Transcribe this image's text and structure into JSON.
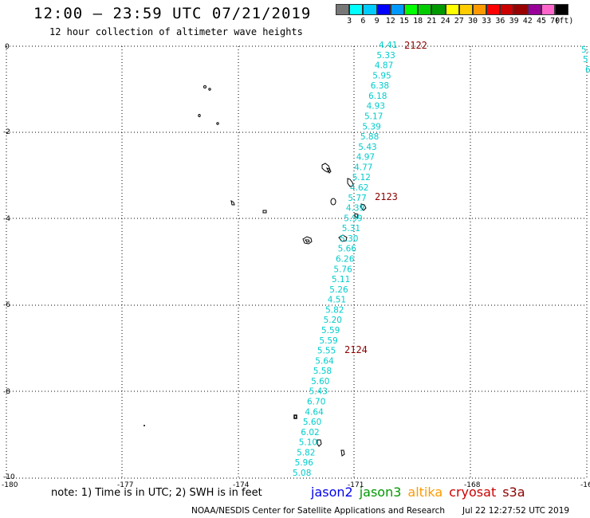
{
  "header": {
    "title": "12:00 — 23:59 UTC 07/21/2019",
    "subtitle": "12 hour collection of altimeter wave heights"
  },
  "legend": {
    "colors": [
      "#777777",
      "#00ffff",
      "#00ccff",
      "#0000ff",
      "#0099ff",
      "#00ff00",
      "#00cc00",
      "#009900",
      "#ffff00",
      "#ffcc00",
      "#ff9900",
      "#ff0000",
      "#cc0000",
      "#990000",
      "#990099",
      "#ff66cc",
      "#000000"
    ],
    "labels": [
      "3",
      "6",
      "9",
      "12",
      "15",
      "18",
      "21",
      "24",
      "27",
      "30",
      "33",
      "36",
      "39",
      "42",
      "45",
      "70",
      "(ft)"
    ]
  },
  "map": {
    "x_ticks": [
      "-180",
      "-177",
      "-174",
      "-171",
      "-168",
      "-16"
    ],
    "y_ticks": [
      "0",
      "-2",
      "-4",
      "-6",
      "-8",
      "-10"
    ],
    "pass_labels": [
      "2122",
      "2123",
      "2124"
    ],
    "pass_label_color": "#8b0000",
    "value_color": "#00cccc",
    "wave_heights": [
      "4.41",
      "5.33",
      "4.87",
      "5.95",
      "6.38",
      "6.18",
      "4.93",
      "5.17",
      "5.39",
      "5.88",
      "5.43",
      "4.97",
      "4.77",
      "5.12",
      "4.62",
      "5.77",
      "4.39",
      "5.99",
      "5.31",
      "5.30",
      "5.66",
      "6.26",
      "5.76",
      "5.11",
      "5.26",
      "4.51",
      "5.82",
      "5.20",
      "5.59",
      "5.59",
      "5.55",
      "5.64",
      "5.58",
      "5.60",
      "5.43",
      "6.70",
      "4.64",
      "5.60",
      "6.02",
      "5.10",
      "5.82",
      "5.96",
      "5.08"
    ],
    "edge_values": [
      "5.",
      "5",
      "6",
      ""
    ]
  },
  "note": "note: 1) Time is in UTC; 2) SWH is in feet",
  "satellites": [
    {
      "name": "jason2",
      "color": "#0000ee"
    },
    {
      "name": "jason3",
      "color": "#009900"
    },
    {
      "name": "altika",
      "color": "#ff9900"
    },
    {
      "name": "cryosat",
      "color": "#cc0000"
    },
    {
      "name": "s3a",
      "color": "#8b0000"
    }
  ],
  "footer": {
    "credit": "NOAA/NESDIS Center for Satellite Applications and Research",
    "timestamp": "Jul 22 12:27:52 UTC 2019"
  }
}
